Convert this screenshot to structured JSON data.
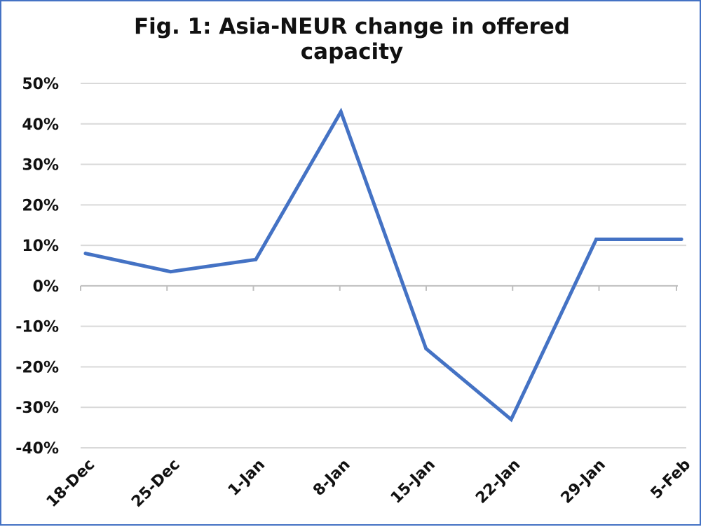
{
  "chart_data": {
    "type": "line",
    "title": "Fig. 1: Asia-NEUR change in offered capacity",
    "xlabel": "",
    "ylabel": "",
    "categories": [
      "18-Dec",
      "25-Dec",
      "1-Jan",
      "8-Jan",
      "15-Jan",
      "22-Jan",
      "29-Jan",
      "5-Feb"
    ],
    "y_tick_labels": [
      "50%",
      "40%",
      "30%",
      "20%",
      "10%",
      "0%",
      "-10%",
      "-20%",
      "-30%",
      "-40%"
    ],
    "ylim": [
      -40,
      50
    ],
    "grid": true,
    "legend": "none",
    "series": [
      {
        "values": [
          8,
          3.5,
          6.5,
          43,
          -15.5,
          -33,
          11.5,
          11.5
        ]
      }
    ],
    "colors": {
      "line": "#4472C4",
      "grid": "#d9d9d9",
      "axis": "#bfbfbf",
      "frame": "#4472C4"
    }
  }
}
